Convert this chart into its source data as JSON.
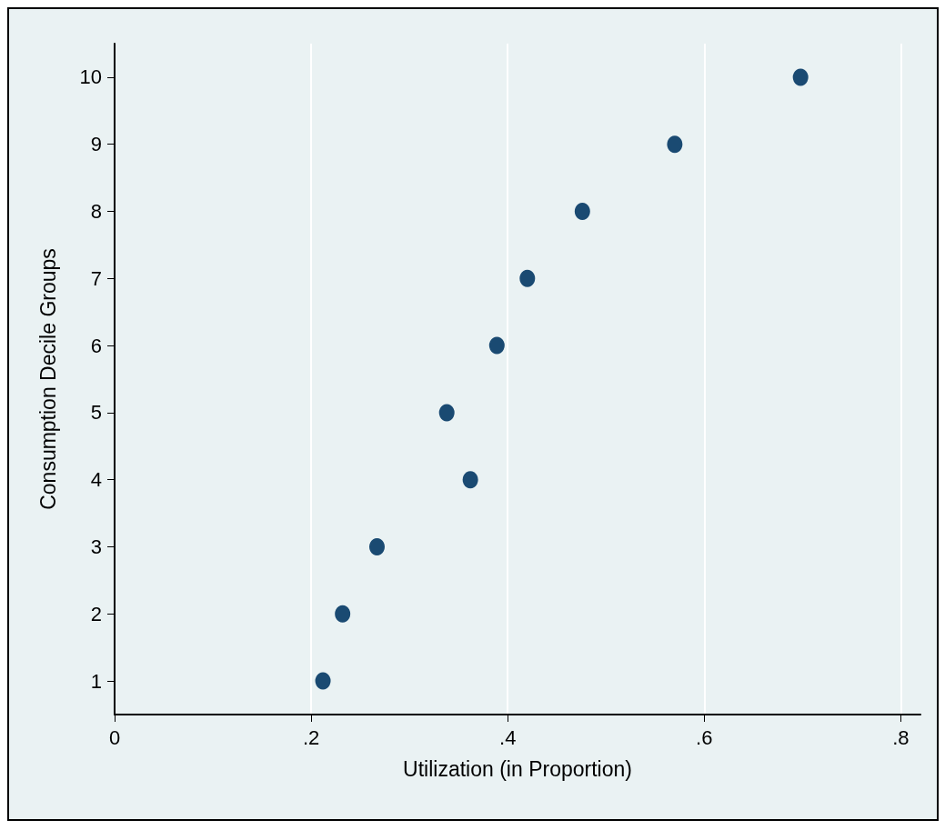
{
  "chart_data": {
    "type": "scatter",
    "orientation": "horizontal",
    "xlabel": "Utilization (in Proportion)",
    "ylabel": "Consumption Decile Groups",
    "categories": [
      "10",
      "9",
      "8",
      "7",
      "6",
      "5",
      "4",
      "3",
      "2",
      "1"
    ],
    "values": [
      0.698,
      0.57,
      0.476,
      0.42,
      0.389,
      0.338,
      0.362,
      0.267,
      0.232,
      0.212
    ],
    "color": "#1a4a72",
    "marker": "circle",
    "xlim": [
      0,
      0.82
    ],
    "xticks": [
      0,
      {
        "value": 0.2,
        "label": ".2"
      },
      {
        "value": 0.4,
        "label": ".4"
      },
      {
        "value": 0.6,
        "label": ".6"
      },
      {
        "value": 0.8,
        "label": ".8"
      }
    ],
    "grid": "x"
  }
}
